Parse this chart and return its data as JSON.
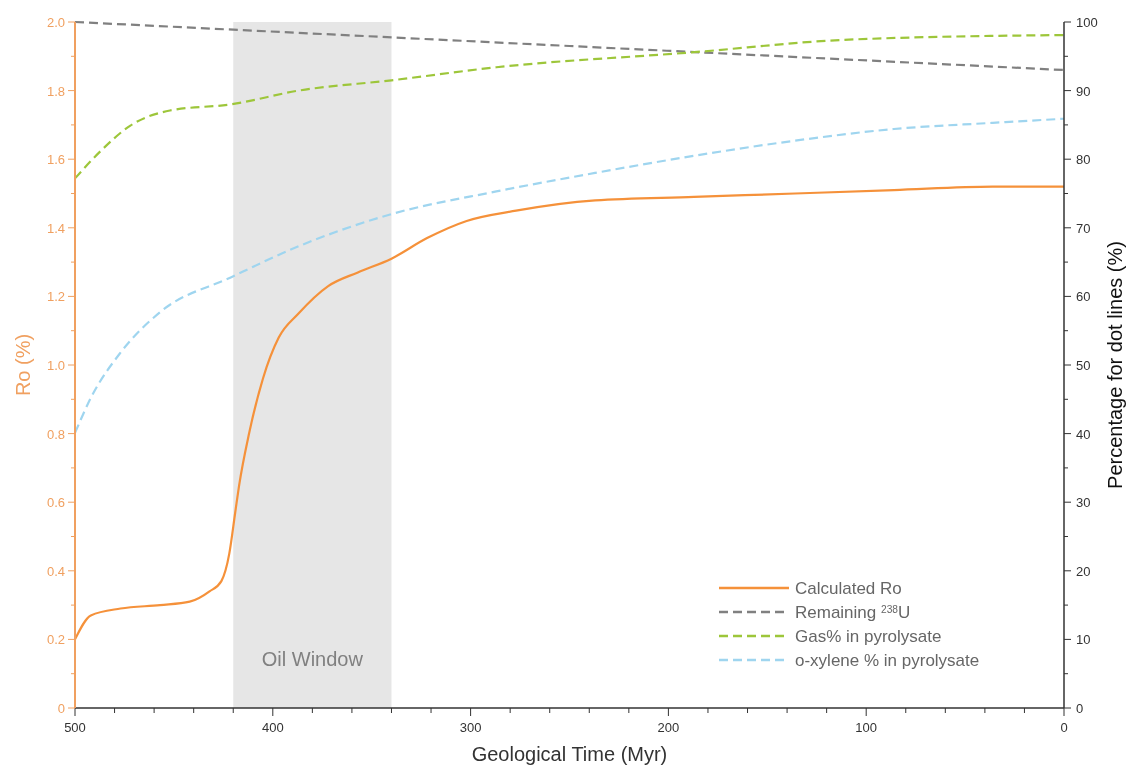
{
  "chart_data": {
    "type": "line",
    "xlabel": "Geological Time (Myr)",
    "ylabel": "Ro (%)",
    "y2label": "Percentage for dot lines (%)",
    "xlim": [
      500,
      0
    ],
    "xticks": [
      500,
      {
        "value": 480,
        "label": null
      },
      {
        "value": 460,
        "label": null
      },
      {
        "value": 440,
        "label": null
      },
      {
        "value": 420,
        "label": null
      },
      400,
      {
        "value": 380,
        "label": null
      },
      {
        "value": 360,
        "label": null
      },
      {
        "value": 340,
        "label": null
      },
      {
        "value": 320,
        "label": null
      },
      300,
      {
        "value": 280,
        "label": null
      },
      {
        "value": 260,
        "label": null
      },
      {
        "value": 240,
        "label": null
      },
      {
        "value": 220,
        "label": null
      },
      200,
      {
        "value": 180,
        "label": null
      },
      {
        "value": 160,
        "label": null
      },
      {
        "value": 140,
        "label": null
      },
      {
        "value": 120,
        "label": null
      },
      100,
      {
        "value": 80,
        "label": null
      },
      {
        "value": 60,
        "label": null
      },
      {
        "value": 40,
        "label": null
      },
      {
        "value": 20,
        "label": null
      },
      0
    ],
    "ylim": [
      0,
      2
    ],
    "yticks": [
      0,
      {
        "value": 0.1,
        "label": null
      },
      0.2,
      {
        "value": 0.3,
        "label": null
      },
      0.4,
      {
        "value": 0.5,
        "label": null
      },
      0.6,
      {
        "value": 0.7,
        "label": null
      },
      0.8,
      {
        "value": 0.9,
        "label": null
      },
      {
        "value": 1,
        "label": "1.0"
      },
      {
        "value": 1.1,
        "label": null
      },
      1.2,
      {
        "value": 1.3,
        "label": null
      },
      1.4,
      {
        "value": 1.5,
        "label": null
      },
      1.6,
      {
        "value": 1.7,
        "label": null
      },
      1.8,
      {
        "value": 1.9,
        "label": null
      },
      {
        "value": 2,
        "label": "2.0"
      }
    ],
    "y2lim": [
      0,
      100
    ],
    "y2ticks": [
      0,
      {
        "value": 5,
        "label": null
      },
      10,
      {
        "value": 15,
        "label": null
      },
      20,
      {
        "value": 25,
        "label": null
      },
      30,
      {
        "value": 35,
        "label": null
      },
      40,
      {
        "value": 45,
        "label": null
      },
      50,
      {
        "value": 55,
        "label": null
      },
      60,
      {
        "value": 65,
        "label": null
      },
      70,
      {
        "value": 75,
        "label": null
      },
      80,
      {
        "value": 85,
        "label": null
      },
      90,
      {
        "value": 95,
        "label": null
      },
      100
    ],
    "bands": [
      {
        "axis": "x",
        "from": 420,
        "to": 340,
        "label": "Oil Window",
        "color": "#e6e6e6"
      }
    ],
    "legend": "bottom right",
    "series": [
      {
        "name": "Calculated Ro",
        "color": "#f5913a",
        "line_style": "solid",
        "x": [
          500,
          492,
          477,
          457,
          442,
          432,
          426,
          422,
          419,
          417,
          412,
          405,
          397,
          387,
          372,
          357,
          340,
          322,
          302,
          277,
          237,
          187,
          136,
          86,
          36,
          0
        ],
        "values": [
          0.2,
          0.27,
          0.29,
          0.3,
          0.31,
          0.34,
          0.37,
          0.45,
          0.57,
          0.65,
          0.8,
          0.96,
          1.08,
          1.15,
          1.23,
          1.27,
          1.31,
          1.37,
          1.42,
          1.45,
          1.48,
          1.49,
          1.5,
          1.51,
          1.52,
          1.52
        ]
      },
      {
        "name": "Remaining $^{238}$U",
        "color": "#808080",
        "line_style": "dashed",
        "axis": "y2",
        "x": [
          500,
          250,
          0
        ],
        "values": [
          100,
          96.5,
          93
        ]
      },
      {
        "name": "Gas% in pyrolysate",
        "color": "#9dc63a",
        "line_style": "dashed",
        "axis": "y2",
        "x": [
          500,
          487,
          472,
          452,
          421,
          387,
          340,
          287,
          187,
          111,
          0
        ],
        "values": [
          77.2,
          81.2,
          84.9,
          87.1,
          88,
          90,
          91.5,
          93.4,
          95.6,
          97.4,
          98.1
        ]
      },
      {
        "name": "o-xylene % in pyrolysate",
        "color": "#9fd5ef",
        "line_style": "dashed",
        "axis": "y2",
        "x": [
          500,
          492,
          477,
          457,
          421,
          387,
          340,
          287,
          237,
          187,
          136,
          86,
          36,
          0
        ],
        "values": [
          40.1,
          45.2,
          51.8,
          57.7,
          62.8,
          67.3,
          72,
          75.3,
          78,
          80.5,
          82.7,
          84.4,
          85.3,
          85.9
        ]
      }
    ]
  }
}
